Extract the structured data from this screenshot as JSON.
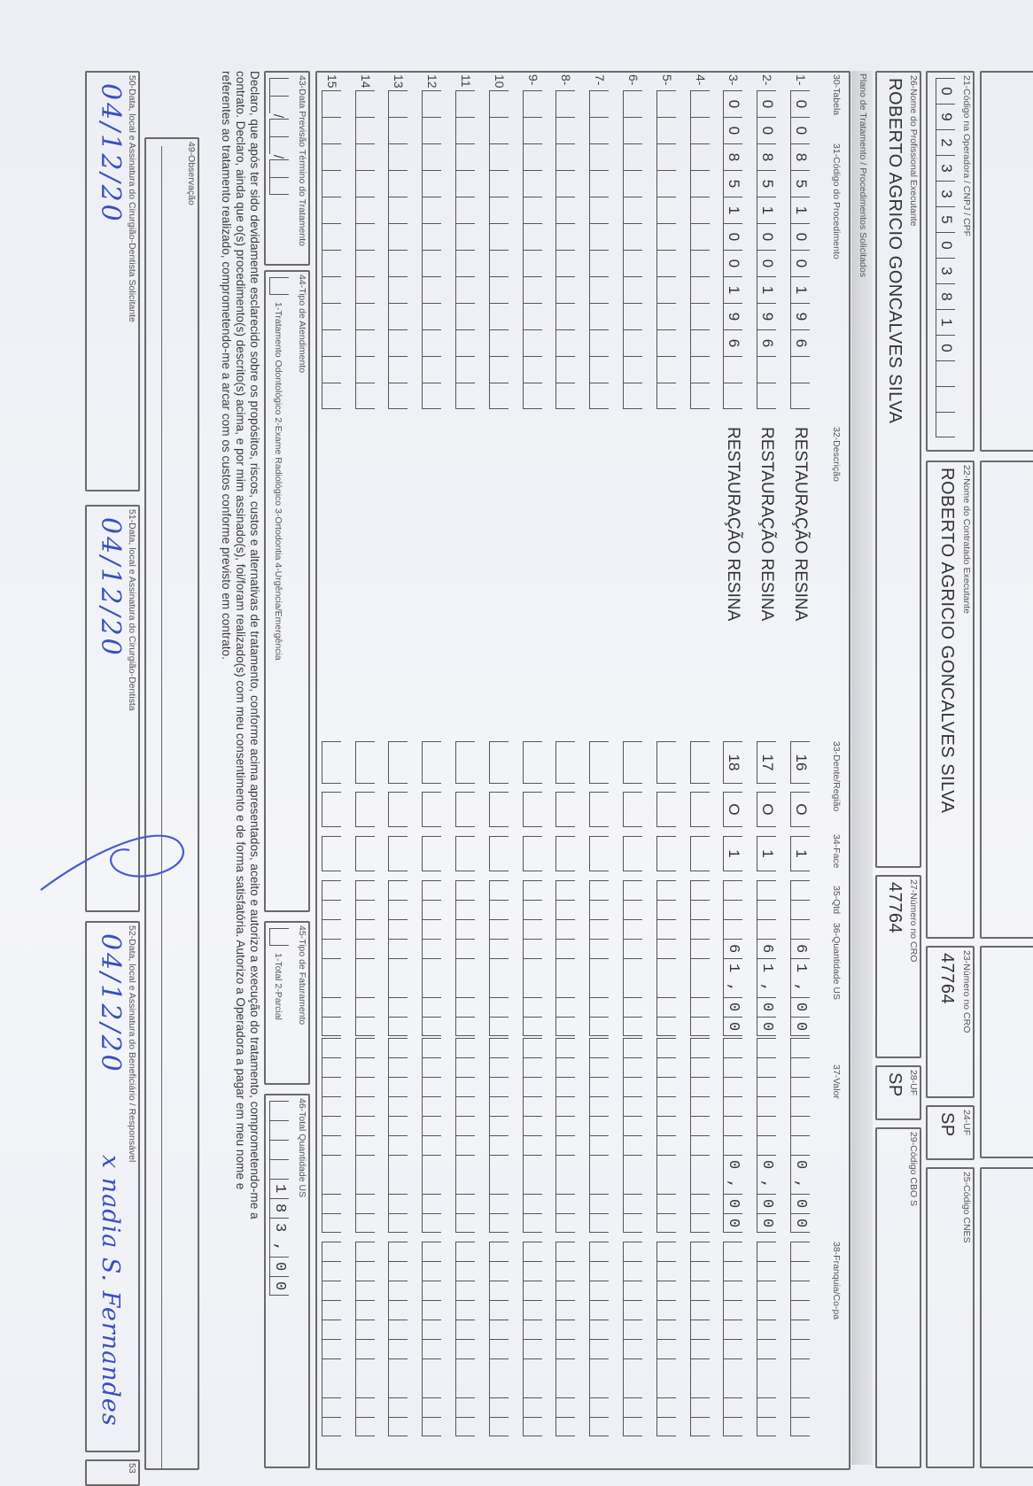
{
  "header": {
    "f21_label": "21-Código na Operadora / CNPJ / CPF",
    "f21_value": "09233503810",
    "f22_label": "22-Nome do Contratado Executante",
    "f22_value": "ROBERTO AGRICIO GONCALVES SILVA",
    "f23_label": "23-Número no CRO",
    "f23_value": "47764",
    "f24_label": "24-UF",
    "f24_value": "SP",
    "f25_label": "25-Código CNES",
    "f26_label": "26-Nome do Profissional Executante",
    "f26_value": "ROBERTO AGRICIO GONCALVES SILVA",
    "f27_label": "27-Número no CRO",
    "f27_value": "47764",
    "f28_label": "28-UF",
    "f28_value": "SP",
    "f29_label": "29-Código CBO S"
  },
  "plan": {
    "section_title": "Plano de Tratamento / Procedimentos Solicitados",
    "columns": [
      "30-Tabela",
      "31-Código do Procedimento",
      "32-Descrição",
      "33-Dente/Região",
      "34-Face",
      "35-Qtd",
      "36-Quantidade US",
      "37-Valor",
      "38-Franquia/Co-pa"
    ],
    "rows": [
      {
        "num": "1-",
        "code": "0085100196",
        "description": "RESTAURAÇÃO RESINA",
        "tooth": "16",
        "face": "O",
        "qty": "1",
        "us": "61,00",
        "value": "0,00"
      },
      {
        "num": "2-",
        "code": "0085100196",
        "description": "RESTAURAÇÃO RESINA",
        "tooth": "17",
        "face": "O",
        "qty": "1",
        "us": "61,00",
        "value": "0,00"
      },
      {
        "num": "3-",
        "code": "0085100196",
        "description": "RESTAURAÇÃO RESINA",
        "tooth": "18",
        "face": "O",
        "qty": "1",
        "us": "61,00",
        "value": "0,00"
      },
      {
        "num": "4-"
      },
      {
        "num": "5-"
      },
      {
        "num": "6-"
      },
      {
        "num": "7-"
      },
      {
        "num": "8-"
      },
      {
        "num": "9-"
      },
      {
        "num": "10"
      },
      {
        "num": "11"
      },
      {
        "num": "12"
      },
      {
        "num": "13"
      },
      {
        "num": "14"
      },
      {
        "num": "15"
      }
    ]
  },
  "footer": {
    "f43_label": "43-Data Previsão Término do Tratamento",
    "f44_label": "44-Tipo de Atendimento",
    "f44_options": "1-Tratamento Odontológico  2-Exame Radiológico  3-Ortodontia  4-Urgência/Emergência",
    "f45_label": "45-Tipo de Faturamento",
    "f45_options": "1-Total  2-Parcial",
    "f46_label": "46-Total Quantidade US",
    "f46_value": "183,00",
    "declaration": [
      "Declaro, que após ter sido devidamente esclarecido sobre os propósitos, riscos, custos e alternativas de tratamento, conforme acima apresentados, aceito e autorizo a execução do tratamento, comprometendo-me a",
      "contrato. Declaro, ainda que o(s) procedimento(s) descrito(s) acima, e por mim assinado(s), foi/foram realizado(s) com meu consentimento e de forma satisfatória. Autorizo a Operadora a pagar em meu nome e",
      "referentes ao tratamento realizado, comprometendo-me a arcar com os custos conforme previsto em contrato."
    ],
    "f49_label": "49-Observação",
    "f50_label": "50-Data, local e Assinatura do Cirurgião-Dentista Solicitante",
    "f50_date": "04/12/20",
    "f51_label": "51-Data, local e Assinatura do Cirurgião-Dentista",
    "f51_date": "04/12/20",
    "f52_label": "52-Data, local e Assinatura do Beneficiário / Responsável",
    "f52_date": "04/12/20",
    "f52_signature": "x nadia S. Fernandes",
    "f53_label": "53"
  },
  "colors": {
    "ink": "#3b4fc0",
    "border": "#6a6a6a",
    "paper": "#eef0f5"
  }
}
